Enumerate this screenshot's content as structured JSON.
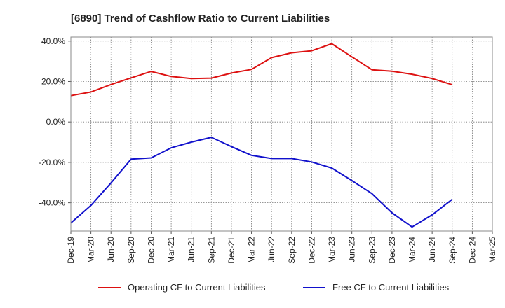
{
  "chart_data": {
    "type": "line",
    "title": "[6890]  Trend of Cashflow Ratio to Current Liabilities",
    "xlabel": "",
    "ylabel": "",
    "x": [
      "Dec-19",
      "Mar-20",
      "Jun-20",
      "Sep-20",
      "Dec-20",
      "Mar-21",
      "Jun-21",
      "Sep-21",
      "Dec-21",
      "Mar-22",
      "Jun-22",
      "Sep-22",
      "Dec-22",
      "Mar-23",
      "Jun-23",
      "Sep-23",
      "Dec-23",
      "Mar-24",
      "Jun-24",
      "Sep-24",
      "Dec-24",
      "Mar-25"
    ],
    "ylim": [
      -54,
      42
    ],
    "y_ticks": [
      40,
      20,
      0,
      -20,
      -40
    ],
    "y_tick_labels": [
      "40.0%",
      "20.0%",
      "0.0%",
      "-20.0%",
      "-40.0%"
    ],
    "grid": true,
    "legend_position": "bottom",
    "series": [
      {
        "name": "Operating CF to Current Liabilities",
        "color": "#dd1111",
        "values": [
          13.0,
          14.8,
          18.5,
          21.8,
          25.0,
          22.5,
          21.5,
          21.7,
          24.2,
          26.0,
          31.8,
          34.2,
          35.2,
          38.7,
          32.2,
          25.8,
          25.1,
          23.6,
          21.5,
          18.4,
          null,
          null
        ]
      },
      {
        "name": "Free CF to Current Liabilities",
        "color": "#1111cc",
        "values": [
          -50.0,
          -41.3,
          -30.2,
          -18.4,
          -17.8,
          -12.8,
          -10.0,
          -7.6,
          -12.2,
          -16.5,
          -18.1,
          -18.1,
          -19.8,
          -22.8,
          -29.0,
          -35.5,
          -45.0,
          -52.0,
          -46.0,
          -38.3,
          null,
          null
        ]
      }
    ]
  }
}
